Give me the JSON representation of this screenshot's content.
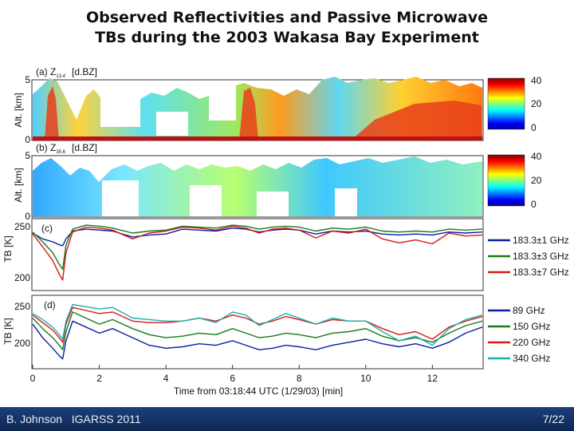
{
  "slide": {
    "title_line1": "Observed Reflectivities and Passive Microwave",
    "title_line2": "TBs during the 2003 Wakasa Bay Experiment",
    "footer_author": "B. Johnson",
    "footer_venue": "IGARSS 2011",
    "page": "7/22"
  },
  "colors": {
    "series_blue": "#0a1fa0",
    "series_green": "#1a7a1a",
    "series_red": "#d81818",
    "series_cyan": "#19b2b2",
    "footer_bg": "#1c3f7c"
  },
  "chart_data": [
    {
      "type": "heatmap",
      "panel_label": "(a) Z",
      "label_subscript": "13.4",
      "units_label": "[d.BZ]",
      "ylabel": "Alt. [km]",
      "ylim": [
        0,
        5
      ],
      "yticks": [
        "5",
        "0"
      ],
      "colorbar_ticks": [
        "40",
        "20",
        "0"
      ],
      "colorbar_range": [
        0,
        40
      ],
      "xlim": [
        0,
        13.5
      ]
    },
    {
      "type": "heatmap",
      "panel_label": "(b) Z",
      "label_subscript": "35.6",
      "units_label": "[d.BZ]",
      "ylabel": "Alt. [km]",
      "ylim": [
        0,
        5
      ],
      "yticks": [
        "5",
        "0"
      ],
      "colorbar_ticks": [
        "40",
        "20",
        "0"
      ],
      "colorbar_range": [
        0,
        40
      ],
      "xlim": [
        0,
        13.5
      ]
    },
    {
      "type": "line",
      "panel_label": "(c)",
      "ylabel": "TB [K]",
      "ylim": [
        185,
        255
      ],
      "yticks": [
        "250",
        "200"
      ],
      "xlim": [
        0,
        13.5
      ],
      "x": [
        0,
        0.3,
        0.6,
        0.8,
        0.9,
        1.0,
        1.2,
        1.6,
        2.0,
        2.4,
        3.0,
        3.5,
        4.0,
        4.5,
        5.0,
        5.5,
        6.0,
        6.4,
        6.8,
        7.2,
        7.6,
        8.0,
        8.5,
        9.0,
        9.5,
        10.0,
        10.5,
        11.0,
        11.5,
        12.0,
        12.5,
        13.0,
        13.5
      ],
      "series": [
        {
          "name": "183.3±1 GHz",
          "values": [
            242,
            236,
            233,
            230,
            229,
            236,
            244,
            246,
            245,
            244,
            238,
            240,
            241,
            246,
            245,
            244,
            247,
            246,
            243,
            245,
            246,
            245,
            241,
            244,
            243,
            244,
            241,
            240,
            241,
            240,
            243,
            242,
            243
          ]
        },
        {
          "name": "183.3±3 GHz",
          "values": [
            243,
            233,
            222,
            210,
            205,
            230,
            246,
            250,
            249,
            247,
            242,
            244,
            245,
            249,
            248,
            247,
            250,
            249,
            246,
            248,
            249,
            248,
            244,
            247,
            246,
            248,
            244,
            243,
            244,
            243,
            246,
            245,
            246
          ]
        },
        {
          "name": "183.3±7 GHz",
          "values": [
            241,
            228,
            214,
            200,
            194,
            222,
            243,
            248,
            247,
            245,
            236,
            242,
            244,
            248,
            247,
            245,
            249,
            247,
            242,
            246,
            247,
            245,
            237,
            244,
            242,
            246,
            236,
            232,
            235,
            231,
            242,
            239,
            240
          ]
        }
      ]
    },
    {
      "type": "line",
      "panel_label": "(d)",
      "ylabel": "TB [K]",
      "ylim": [
        175,
        268
      ],
      "yticks": [
        "250",
        "200"
      ],
      "xlim": [
        0,
        13.5
      ],
      "xticks": [
        "0",
        "2",
        "4",
        "6",
        "8",
        "10",
        "12"
      ],
      "xlabel": "Time from 03:18:44 UTC (1/29/03) [min]",
      "x": [
        0,
        0.3,
        0.6,
        0.8,
        0.9,
        1.0,
        1.2,
        1.6,
        2.0,
        2.4,
        3.0,
        3.5,
        4.0,
        4.5,
        5.0,
        5.5,
        6.0,
        6.4,
        6.8,
        7.2,
        7.6,
        8.0,
        8.5,
        9.0,
        9.5,
        10.0,
        10.5,
        11.0,
        11.5,
        12.0,
        12.5,
        13.0,
        13.5
      ],
      "series": [
        {
          "name": "89 GHz",
          "values": [
            232,
            214,
            200,
            190,
            186,
            210,
            236,
            228,
            220,
            226,
            214,
            204,
            200,
            202,
            206,
            204,
            210,
            204,
            198,
            200,
            204,
            202,
            198,
            204,
            208,
            212,
            206,
            202,
            206,
            200,
            208,
            220,
            228
          ]
        },
        {
          "name": "150 GHz",
          "values": [
            240,
            226,
            214,
            204,
            198,
            222,
            248,
            240,
            232,
            238,
            226,
            218,
            214,
            216,
            220,
            218,
            226,
            220,
            214,
            216,
            220,
            218,
            214,
            220,
            222,
            226,
            216,
            210,
            214,
            208,
            220,
            230,
            236
          ]
        },
        {
          "name": "220 GHz",
          "values": [
            244,
            234,
            224,
            214,
            208,
            232,
            254,
            250,
            246,
            248,
            236,
            234,
            234,
            236,
            240,
            236,
            244,
            240,
            232,
            236,
            242,
            238,
            232,
            238,
            236,
            236,
            226,
            218,
            222,
            212,
            228,
            236,
            242
          ]
        },
        {
          "name": "340 GHz",
          "values": [
            246,
            238,
            228,
            218,
            212,
            236,
            258,
            255,
            252,
            254,
            240,
            238,
            236,
            236,
            240,
            234,
            248,
            244,
            230,
            238,
            246,
            240,
            232,
            240,
            236,
            236,
            222,
            210,
            216,
            204,
            226,
            238,
            244
          ]
        }
      ]
    }
  ]
}
